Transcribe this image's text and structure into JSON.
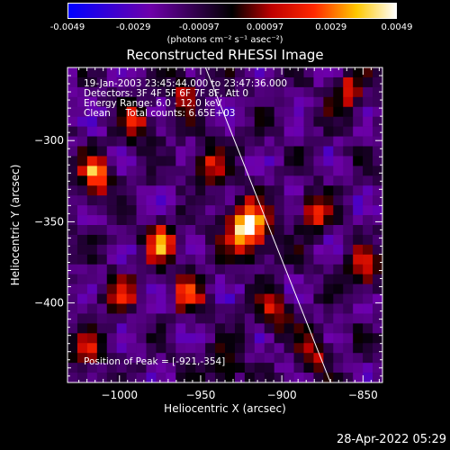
{
  "colorbar": {
    "ticks": [
      "-0.0049",
      "-0.0029",
      "-0.00097",
      "0.00097",
      "0.0029",
      "0.0049"
    ],
    "units": "(photons cm⁻² s⁻¹ asec⁻²)"
  },
  "chart_data": {
    "type": "heatmap",
    "title": "Reconstructed RHESSI Image",
    "xlabel": "Heliocentric X (arcsec)",
    "ylabel": "Heliocentric Y (arcsec)",
    "xlim": [
      -1032,
      -838
    ],
    "ylim": [
      -449,
      -255
    ],
    "x_ticks": [
      "−1000",
      "−950",
      "−900",
      "−850"
    ],
    "x_tick_values": [
      -1000,
      -950,
      -900,
      -850
    ],
    "y_ticks": [
      "−300",
      "−350",
      "−400"
    ],
    "y_tick_values": [
      -300,
      -350,
      -400
    ],
    "color_range": [
      -0.0049,
      0.0049
    ],
    "peak": [
      -921,
      -354
    ],
    "limb_line": [
      [
        -947,
        -255
      ],
      [
        -870,
        -449
      ]
    ],
    "blobs": [
      {
        "x": -921,
        "y": -354,
        "value": 0.0049
      },
      {
        "x": -1015,
        "y": -322,
        "value": 0.003
      },
      {
        "x": -975,
        "y": -363,
        "value": 0.0026
      },
      {
        "x": -958,
        "y": -393,
        "value": 0.0018
      },
      {
        "x": -880,
        "y": -345,
        "value": 0.0019
      },
      {
        "x": -905,
        "y": -405,
        "value": 0.0017
      },
      {
        "x": -1000,
        "y": -395,
        "value": 0.0016
      },
      {
        "x": -990,
        "y": -290,
        "value": 0.0014
      },
      {
        "x": -945,
        "y": -315,
        "value": 0.0015
      },
      {
        "x": -860,
        "y": -270,
        "value": 0.0016
      },
      {
        "x": -850,
        "y": -380,
        "value": 0.0015
      },
      {
        "x": -880,
        "y": -430,
        "value": 0.0012
      },
      {
        "x": -1020,
        "y": -430,
        "value": 0.0011
      },
      {
        "x": -935,
        "y": -440,
        "value": 0.0012
      },
      {
        "x": -960,
        "y": -270,
        "value": 0.001
      }
    ]
  },
  "info": {
    "line1": "19-Jan-2003 23:45:44.000 to 23:47:36.000",
    "line2": "Detectors: 3F 4F 5F 6F 7F 8F, Att 0",
    "line3": "Energy Range: 6.0 - 12.0 keV",
    "line4": "Clean     Total counts: 6.65E+03",
    "peak_text": "Position of Peak = [-921,-354]"
  },
  "timestamp": "28-Apr-2022 05:29"
}
